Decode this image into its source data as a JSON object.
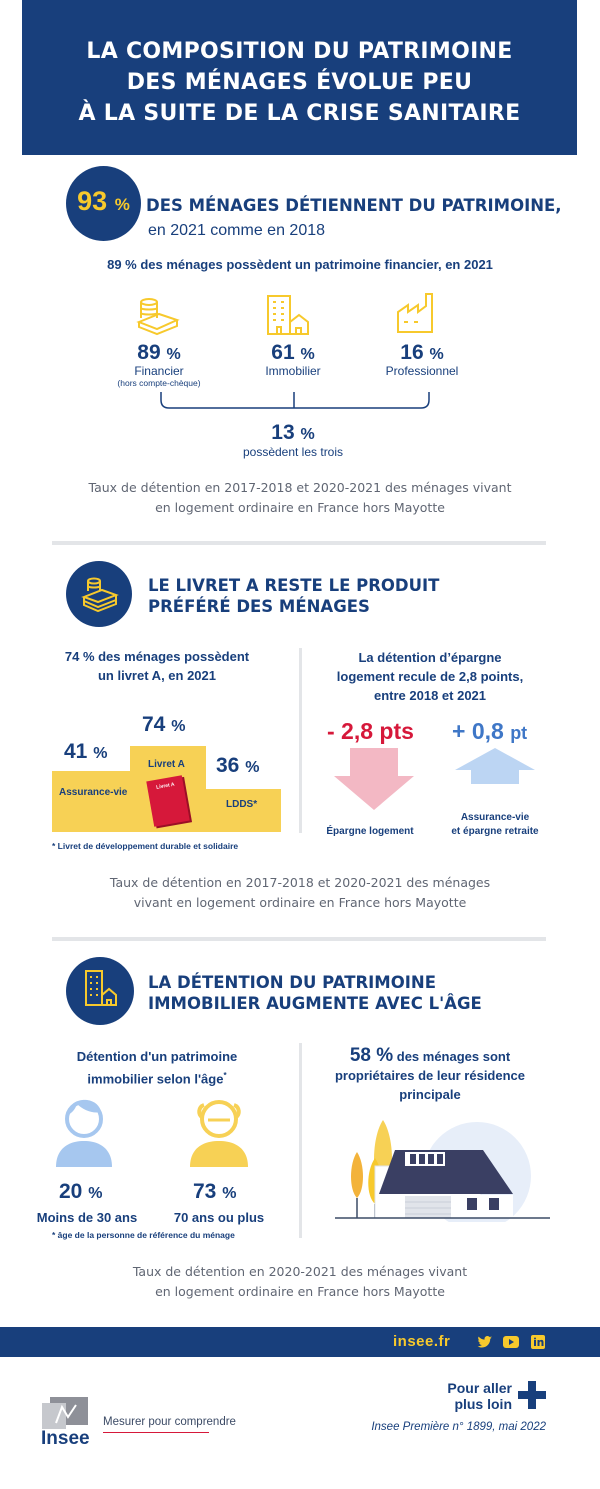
{
  "header": {
    "title_lines": [
      "LA COMPOSITION DU PATRIMOINE",
      "DES MÉNAGES ÉVOLUE PEU",
      "À LA SUITE DE LA CRISE SANITAIRE"
    ]
  },
  "section1": {
    "badge_value": "93",
    "badge_unit": "%",
    "headline": "DES MÉNAGES DÉTIENNENT DU PATRIMOINE,",
    "headline_sub": "en 2021 comme en 2018",
    "subtitle": "89 % des ménages possèdent un patrimoine financier, en 2021",
    "stats": [
      {
        "value": "89",
        "unit": "%",
        "label": "Financier",
        "sublabel": "(hors compte-chèque)",
        "icon": "coins-icon"
      },
      {
        "value": "61",
        "unit": "%",
        "label": "Immobilier",
        "sublabel": "",
        "icon": "building-house-icon"
      },
      {
        "value": "16",
        "unit": "%",
        "label": "Professionnel",
        "sublabel": "",
        "icon": "factory-icon"
      }
    ],
    "all_three": {
      "value": "13",
      "unit": "%",
      "label": "possèdent les trois"
    },
    "source_lines": [
      "Taux de détention en 2017-2018 et 2020-2021 des ménages vivant",
      "en logement ordinaire en France hors Mayotte"
    ]
  },
  "section2": {
    "title_lines": [
      "LE LIVRET A RESTE LE PRODUIT",
      "PRÉFÉRÉ DES MÉNAGES"
    ],
    "left_heading_lines": [
      "74 % des ménages possèdent",
      "un livret  A, en 2021"
    ],
    "podium": [
      {
        "value": "41",
        "unit": "%",
        "label": "Assurance-vie"
      },
      {
        "value": "74",
        "unit": "%",
        "label": "Livret A"
      },
      {
        "value": "36",
        "unit": "%",
        "label": "LDDS*"
      }
    ],
    "booklet_label": "Livret A",
    "footnote": "* Livret de développement durable et solidaire",
    "right_heading_lines": [
      "La détention d’épargne",
      "logement recule de 2,8 points,",
      "entre 2018 et 2021"
    ],
    "down_value": "- 2,8 pts",
    "down_label": "Épargne logement",
    "up_value": "+ 0,8",
    "up_unit": "pt",
    "up_label_lines": [
      "Assurance-vie",
      "et épargne retraite"
    ],
    "source_lines": [
      "Taux de détention en 2017-2018 et 2020-2021 des ménages",
      "vivant en logement ordinaire en France hors Mayotte"
    ],
    "colors": {
      "podium": "#f7d155",
      "down_arrow": "#f3b8c4",
      "up_arrow": "#bcd5f3",
      "booklet": "#d6183a"
    }
  },
  "section3": {
    "title_lines": [
      "LA DÉTENTION DU PATRIMOINE",
      "IMMOBILIER AUGMENTE AVEC L'ÂGE"
    ],
    "left_heading_lines": [
      "Détention d'un patrimoine",
      "immobilier selon l'âge"
    ],
    "left_heading_mark": "*",
    "groups": [
      {
        "value": "20",
        "unit": "%",
        "label": "Moins de 30 ans",
        "icon": "young-person-icon"
      },
      {
        "value": "73",
        "unit": "%",
        "label": "70 ans ou plus",
        "icon": "elderly-person-icon"
      }
    ],
    "footnote": "* âge de la personne de référence du ménage",
    "owner_value": "58 %",
    "owner_text_lines": [
      "des ménages sont",
      "propriétaires de leur résidence",
      "principale"
    ],
    "source_lines": [
      "Taux de détention en 2020-2021 des ménages vivant",
      "en logement ordinaire en France hors Mayotte"
    ]
  },
  "footer": {
    "link": "insee.fr",
    "social_icons": [
      "twitter-icon",
      "youtube-icon",
      "linkedin-icon"
    ],
    "more_lines": [
      "Pour aller",
      "plus loin"
    ],
    "reference": "Insee Première n° 1899, mai 2022",
    "logo_word": "Insee",
    "tagline": "Mesurer pour comprendre"
  },
  "colors": {
    "navy": "#183f7c",
    "yellow": "#f7c92c",
    "grey_divider": "#e3e5e8"
  }
}
